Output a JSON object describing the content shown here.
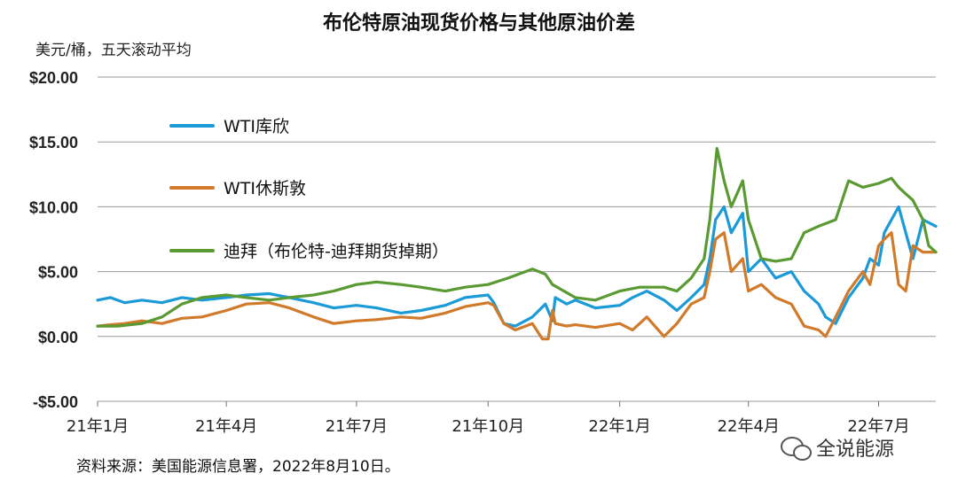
{
  "header": {
    "title": "布伦特原油现货价格与其他原油价差",
    "unit_label": "美元/桶，五天滚动平均"
  },
  "footer": {
    "source": "资料来源：美国能源信息署，2022年8月10日。",
    "watermark": "全说能源",
    "watermark_icon": "wechat-icon"
  },
  "chart_data": {
    "type": "line",
    "title": "布伦特原油现货价格与其他原油价差",
    "ylabel": "美元/桶，五天滚动平均",
    "ylim": [
      -5,
      20
    ],
    "yticks": [
      -5,
      0,
      5,
      10,
      15,
      20
    ],
    "ytick_labels": [
      "-$5.00",
      "$0.00",
      "$5.00",
      "$10.00",
      "$15.00",
      "$20.00"
    ],
    "xlim": [
      "2021-01-01",
      "2022-08-10"
    ],
    "xticks": [
      "2021-01-01",
      "2021-04-01",
      "2021-07-01",
      "2021-10-01",
      "2022-01-01",
      "2022-04-01",
      "2022-07-01"
    ],
    "xtick_labels": [
      "21年1月",
      "21年4月",
      "21年7月",
      "21年10月",
      "22年1月",
      "22年4月",
      "22年7月"
    ],
    "grid": true,
    "legend": "upper-left",
    "series": [
      {
        "name": "WTI库欣",
        "color": "#1a9ad6",
        "x": [
          "2021-01-01",
          "2021-01-10",
          "2021-01-20",
          "2021-02-01",
          "2021-02-15",
          "2021-03-01",
          "2021-03-15",
          "2021-04-01",
          "2021-04-15",
          "2021-05-01",
          "2021-05-15",
          "2021-06-01",
          "2021-06-15",
          "2021-07-01",
          "2021-07-15",
          "2021-08-01",
          "2021-08-15",
          "2021-09-01",
          "2021-09-15",
          "2021-10-01",
          "2021-10-05",
          "2021-10-12",
          "2021-10-20",
          "2021-11-01",
          "2021-11-10",
          "2021-11-15",
          "2021-11-17",
          "2021-11-25",
          "2021-12-01",
          "2021-12-15",
          "2022-01-01",
          "2022-01-10",
          "2022-01-20",
          "2022-02-01",
          "2022-02-10",
          "2022-02-20",
          "2022-03-01",
          "2022-03-05",
          "2022-03-09",
          "2022-03-15",
          "2022-03-20",
          "2022-03-28",
          "2022-04-01",
          "2022-04-10",
          "2022-04-20",
          "2022-05-01",
          "2022-05-10",
          "2022-05-20",
          "2022-05-25",
          "2022-06-01",
          "2022-06-10",
          "2022-06-20",
          "2022-06-25",
          "2022-07-01",
          "2022-07-05",
          "2022-07-10",
          "2022-07-15",
          "2022-07-20",
          "2022-07-25",
          "2022-08-01",
          "2022-08-10"
        ],
        "y": [
          2.8,
          3.0,
          2.6,
          2.8,
          2.6,
          3.0,
          2.8,
          3.0,
          3.2,
          3.3,
          3.0,
          2.6,
          2.2,
          2.4,
          2.2,
          1.8,
          2.0,
          2.4,
          3.0,
          3.2,
          2.6,
          1.0,
          0.8,
          1.5,
          2.5,
          1.2,
          3.0,
          2.5,
          2.8,
          2.2,
          2.4,
          3.0,
          3.5,
          2.8,
          2.0,
          3.0,
          4.0,
          6.0,
          9.0,
          10.0,
          8.0,
          9.5,
          5.0,
          6.0,
          4.5,
          5.0,
          3.5,
          2.5,
          1.5,
          1.0,
          3.0,
          4.5,
          6.0,
          5.5,
          8.0,
          9.0,
          10.0,
          8.0,
          6.0,
          9.0,
          8.5
        ]
      },
      {
        "name": "WTI休斯敦",
        "color": "#d07a2a",
        "x": [
          "2021-01-01",
          "2021-01-10",
          "2021-01-20",
          "2021-02-01",
          "2021-02-15",
          "2021-03-01",
          "2021-03-15",
          "2021-04-01",
          "2021-04-15",
          "2021-05-01",
          "2021-05-15",
          "2021-06-01",
          "2021-06-15",
          "2021-07-01",
          "2021-07-15",
          "2021-08-01",
          "2021-08-15",
          "2021-09-01",
          "2021-09-15",
          "2021-10-01",
          "2021-10-05",
          "2021-10-12",
          "2021-10-20",
          "2021-11-01",
          "2021-11-08",
          "2021-11-12",
          "2021-11-15",
          "2021-11-17",
          "2021-11-25",
          "2021-12-01",
          "2021-12-15",
          "2022-01-01",
          "2022-01-10",
          "2022-01-20",
          "2022-02-01",
          "2022-02-10",
          "2022-02-20",
          "2022-03-01",
          "2022-03-05",
          "2022-03-09",
          "2022-03-15",
          "2022-03-20",
          "2022-03-28",
          "2022-04-01",
          "2022-04-10",
          "2022-04-20",
          "2022-05-01",
          "2022-05-10",
          "2022-05-20",
          "2022-05-25",
          "2022-06-01",
          "2022-06-10",
          "2022-06-20",
          "2022-06-25",
          "2022-07-01",
          "2022-07-05",
          "2022-07-10",
          "2022-07-15",
          "2022-07-20",
          "2022-07-25",
          "2022-08-01",
          "2022-08-10"
        ],
        "y": [
          0.8,
          0.9,
          1.0,
          1.2,
          1.0,
          1.4,
          1.5,
          2.0,
          2.5,
          2.6,
          2.2,
          1.5,
          1.0,
          1.2,
          1.3,
          1.5,
          1.4,
          1.8,
          2.3,
          2.6,
          2.4,
          1.0,
          0.5,
          1.0,
          -0.2,
          -0.2,
          2.0,
          1.0,
          0.8,
          0.9,
          0.7,
          1.0,
          0.5,
          1.5,
          0.0,
          1.0,
          2.5,
          3.0,
          5.0,
          7.5,
          8.0,
          5.0,
          6.0,
          3.5,
          4.0,
          3.0,
          2.5,
          0.8,
          0.5,
          0.0,
          1.5,
          3.5,
          5.0,
          4.0,
          7.0,
          7.5,
          8.0,
          4.0,
          3.5,
          7.0,
          6.5,
          6.5
        ]
      },
      {
        "name": "迪拜（布伦特-迪拜期货掉期）",
        "color": "#5a9a32",
        "x": [
          "2021-01-01",
          "2021-01-15",
          "2021-02-01",
          "2021-02-15",
          "2021-03-01",
          "2021-03-15",
          "2021-04-01",
          "2021-04-15",
          "2021-05-01",
          "2021-05-15",
          "2021-06-01",
          "2021-06-15",
          "2021-07-01",
          "2021-07-15",
          "2021-08-01",
          "2021-08-15",
          "2021-09-01",
          "2021-09-15",
          "2021-10-01",
          "2021-10-15",
          "2021-11-01",
          "2021-11-10",
          "2021-11-15",
          "2021-12-01",
          "2021-12-15",
          "2022-01-01",
          "2022-01-15",
          "2022-02-01",
          "2022-02-10",
          "2022-02-20",
          "2022-03-01",
          "2022-03-05",
          "2022-03-10",
          "2022-03-15",
          "2022-03-20",
          "2022-03-28",
          "2022-04-01",
          "2022-04-10",
          "2022-04-20",
          "2022-05-01",
          "2022-05-10",
          "2022-05-20",
          "2022-06-01",
          "2022-06-10",
          "2022-06-20",
          "2022-07-01",
          "2022-07-10",
          "2022-07-15",
          "2022-07-20",
          "2022-07-25",
          "2022-08-01",
          "2022-08-05",
          "2022-08-10"
        ],
        "y": [
          0.8,
          0.8,
          1.0,
          1.5,
          2.5,
          3.0,
          3.2,
          3.0,
          2.8,
          3.0,
          3.2,
          3.5,
          4.0,
          4.2,
          4.0,
          3.8,
          3.5,
          3.8,
          4.0,
          4.5,
          5.2,
          4.8,
          4.0,
          3.0,
          2.8,
          3.5,
          3.8,
          3.8,
          3.5,
          4.5,
          6.0,
          9.0,
          14.5,
          12.0,
          10.0,
          12.0,
          9.0,
          6.0,
          5.8,
          6.0,
          8.0,
          8.5,
          9.0,
          12.0,
          11.5,
          11.8,
          12.2,
          11.5,
          11.0,
          10.5,
          9.0,
          7.0,
          6.5
        ]
      }
    ]
  }
}
